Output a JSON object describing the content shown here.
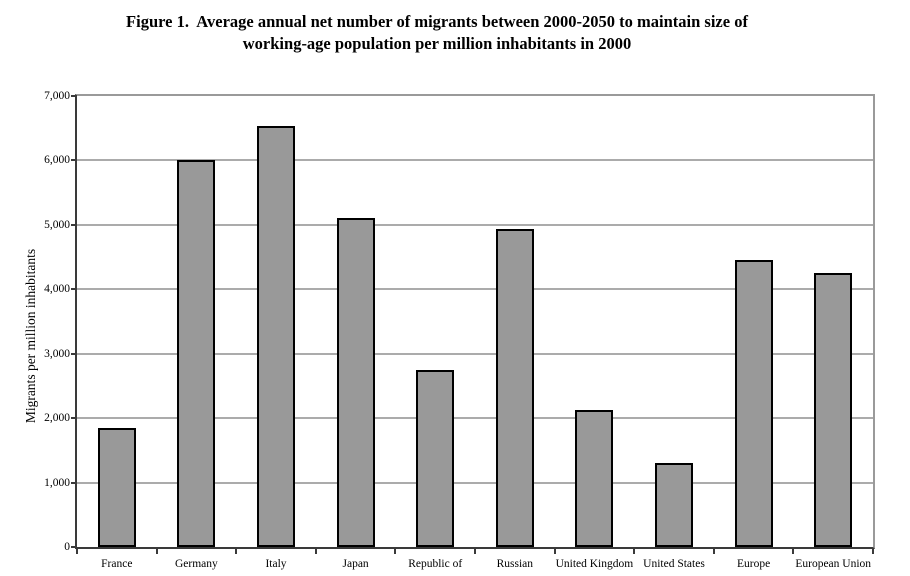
{
  "title": {
    "line1": "Figure 1.  Average annual net number of migrants between 2000-2050 to maintain size of",
    "line2": "working-age population per million inhabitants in 2000"
  },
  "chart_data": {
    "type": "bar",
    "title": "Figure 1. Average annual net number of migrants between 2000-2050 to maintain size of working-age population per million inhabitants in 2000",
    "categories": [
      "France",
      "Germany",
      "Italy",
      "Japan",
      "Republic of",
      "Russian",
      "United Kingdom",
      "United States",
      "Europe",
      "European Union"
    ],
    "values": [
      1850,
      6010,
      6530,
      5100,
      2740,
      4930,
      2130,
      1310,
      4450,
      4250
    ],
    "xlabel": "",
    "ylabel": "Migrants per million inhabitants",
    "ylim": [
      0,
      7000
    ],
    "ytick_interval": 1000,
    "ytick_labels": [
      "0",
      "1,000",
      "2,000",
      "3,000",
      "4,000",
      "5,000",
      "6,000",
      "7,000"
    ],
    "grid": true,
    "legend": false,
    "colors": {
      "bar_fill": "#999999",
      "bar_border": "#000000",
      "gridline": "#ababab",
      "axis_dark": "#3a3a3a",
      "plot_border": "#9a9a9a",
      "text": "#000000"
    }
  }
}
